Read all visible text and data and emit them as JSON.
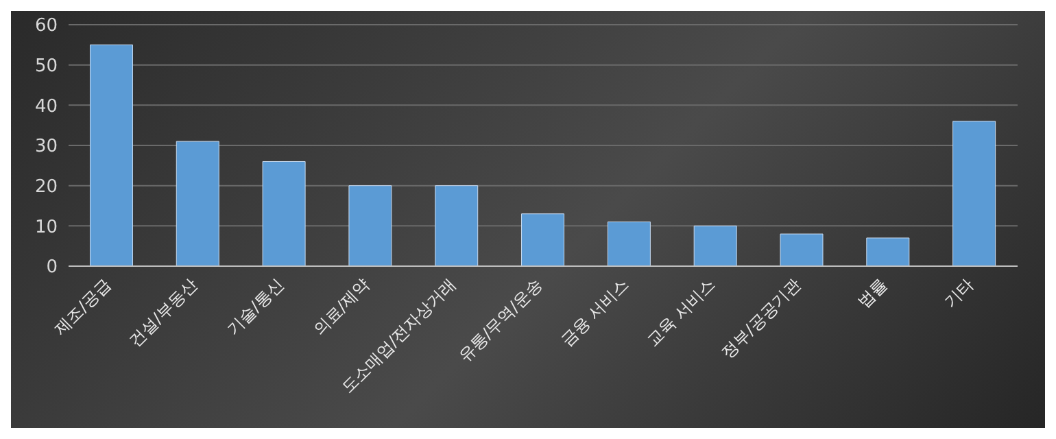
{
  "chart_data": {
    "type": "bar",
    "categories": [
      "제조/공급",
      "건설/부동산",
      "기술/통신",
      "의료/제약",
      "도소매업/전자상거래",
      "유통/무역/운송",
      "금융 서비스",
      "교육 서비스",
      "정부/공공기관",
      "법률",
      "기타"
    ],
    "values": [
      55,
      31,
      26,
      20,
      20,
      13,
      11,
      10,
      8,
      7,
      36
    ],
    "color": "#5b9bd5",
    "ylim": [
      0,
      60
    ],
    "yticks": [
      0,
      10,
      20,
      30,
      40,
      50,
      60
    ],
    "grid": "y"
  }
}
